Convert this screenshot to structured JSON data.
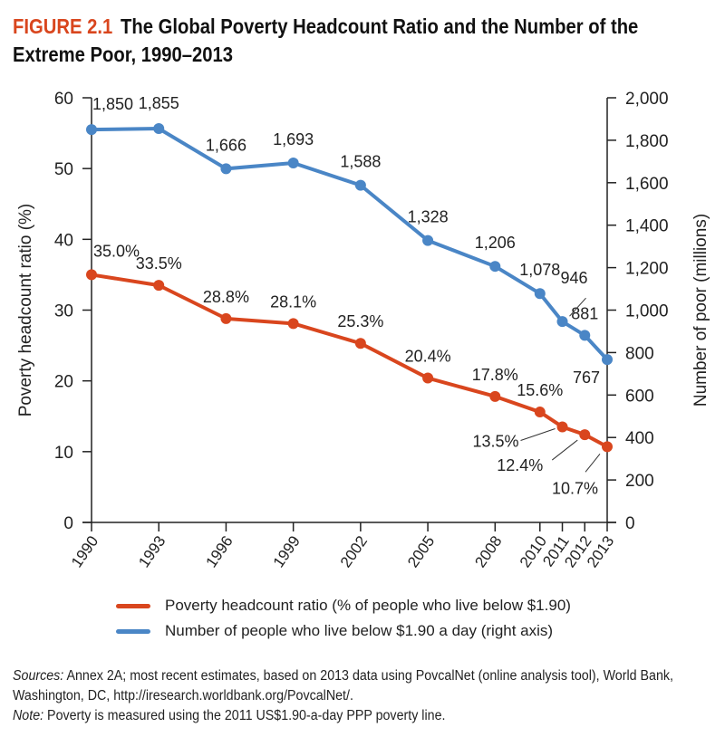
{
  "figure": {
    "label": "FIGURE 2.1",
    "title": "The Global Poverty Headcount Ratio and the Number of the Extreme Poor, 1990–2013"
  },
  "colors": {
    "ratio": "#d9461e",
    "poor": "#4a86c6",
    "figure_label": "#d9461e"
  },
  "chart_data": {
    "type": "line",
    "title": "The Global Poverty Headcount Ratio and the Number of the Extreme Poor, 1990–2013",
    "x": [
      1990,
      1993,
      1996,
      1999,
      2002,
      2005,
      2008,
      2010,
      2011,
      2012,
      2013
    ],
    "x_tick_labels": [
      "1990",
      "1993",
      "1996",
      "1999",
      "2002",
      "2005",
      "2008",
      "2010",
      "2011",
      "2012",
      "2013"
    ],
    "xlim": [
      1990,
      2013
    ],
    "ylabel": "Poverty headcount ratio (%)",
    "ylim": [
      0,
      60
    ],
    "y_ticks": [
      "0",
      "10",
      "20",
      "30",
      "40",
      "50",
      "60"
    ],
    "y2label": "Number of poor (millions)",
    "y2lim": [
      0,
      2000
    ],
    "y2_ticks": [
      "0",
      "200",
      "400",
      "600",
      "800",
      "1,000",
      "1,200",
      "1,400",
      "1,600",
      "1,800",
      "2,000"
    ],
    "grid": false,
    "legend_position": "bottom",
    "series": [
      {
        "name": "Poverty headcount ratio (% of people who live below $1.90)",
        "axis": "left",
        "values": [
          35.0,
          33.5,
          28.8,
          28.1,
          25.3,
          20.4,
          17.8,
          15.6,
          13.5,
          12.4,
          10.7
        ],
        "labels": [
          "35.0%",
          "33.5%",
          "28.8%",
          "28.1%",
          "25.3%",
          "20.4%",
          "17.8%",
          "15.6%",
          "13.5%",
          "12.4%",
          "10.7%"
        ]
      },
      {
        "name": "Number of people who live below $1.90 a day (right axis)",
        "axis": "right",
        "values": [
          1850,
          1855,
          1666,
          1693,
          1588,
          1328,
          1206,
          1078,
          946,
          881,
          767
        ],
        "labels": [
          "1,850",
          "1,855",
          "1,666",
          "1,693",
          "1,588",
          "1,328",
          "1,206",
          "1,078",
          "946",
          "881",
          "767"
        ]
      }
    ]
  },
  "footer": {
    "sources_label": "Sources:",
    "sources_text": " Annex 2A; most recent estimates, based on 2013 data using PovcalNet (online analysis tool), World Bank, Washington, DC, http://iresearch.worldbank.org/PovcalNet/.",
    "note_label": "Note:",
    "note_text": " Poverty is measured using the 2011 US$1.90-a-day PPP poverty line."
  }
}
